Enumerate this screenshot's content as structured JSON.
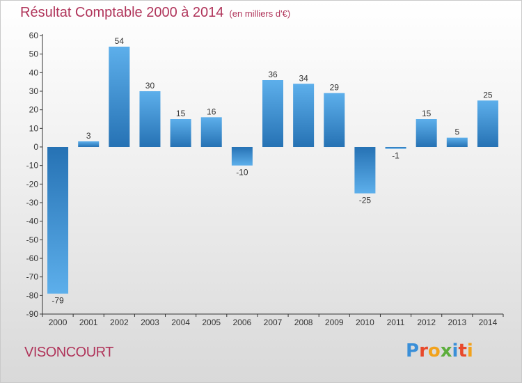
{
  "header": {
    "title": "Résultat Comptable 2000 à 2014",
    "subtitle": "(en milliers d'€)"
  },
  "footer": {
    "place": "VISONCOURT",
    "brand": "Proxiti"
  },
  "chart_data": {
    "type": "bar",
    "categories": [
      "2000",
      "2001",
      "2002",
      "2003",
      "2004",
      "2005",
      "2006",
      "2007",
      "2008",
      "2009",
      "2010",
      "2011",
      "2012",
      "2013",
      "2014"
    ],
    "values": [
      -79,
      3,
      54,
      30,
      15,
      16,
      -10,
      36,
      34,
      29,
      -25,
      -1,
      15,
      5,
      25
    ],
    "data_labels": [
      "-79",
      "3",
      "54",
      "30",
      "15",
      "16",
      "-10",
      "36",
      "34",
      "29",
      "-25",
      "-1",
      "15",
      "5",
      "25"
    ],
    "title": "Résultat Comptable 2000 à 2014",
    "ylim": [
      -90,
      60
    ],
    "yticks": [
      60,
      50,
      40,
      30,
      20,
      10,
      0,
      -10,
      -20,
      -30,
      -40,
      -50,
      -60,
      -70,
      -80,
      -90
    ],
    "grid": false,
    "colors": {
      "bar_light": "#5dafeb",
      "bar_dark": "#2672b4",
      "title": "#b0345a"
    }
  }
}
